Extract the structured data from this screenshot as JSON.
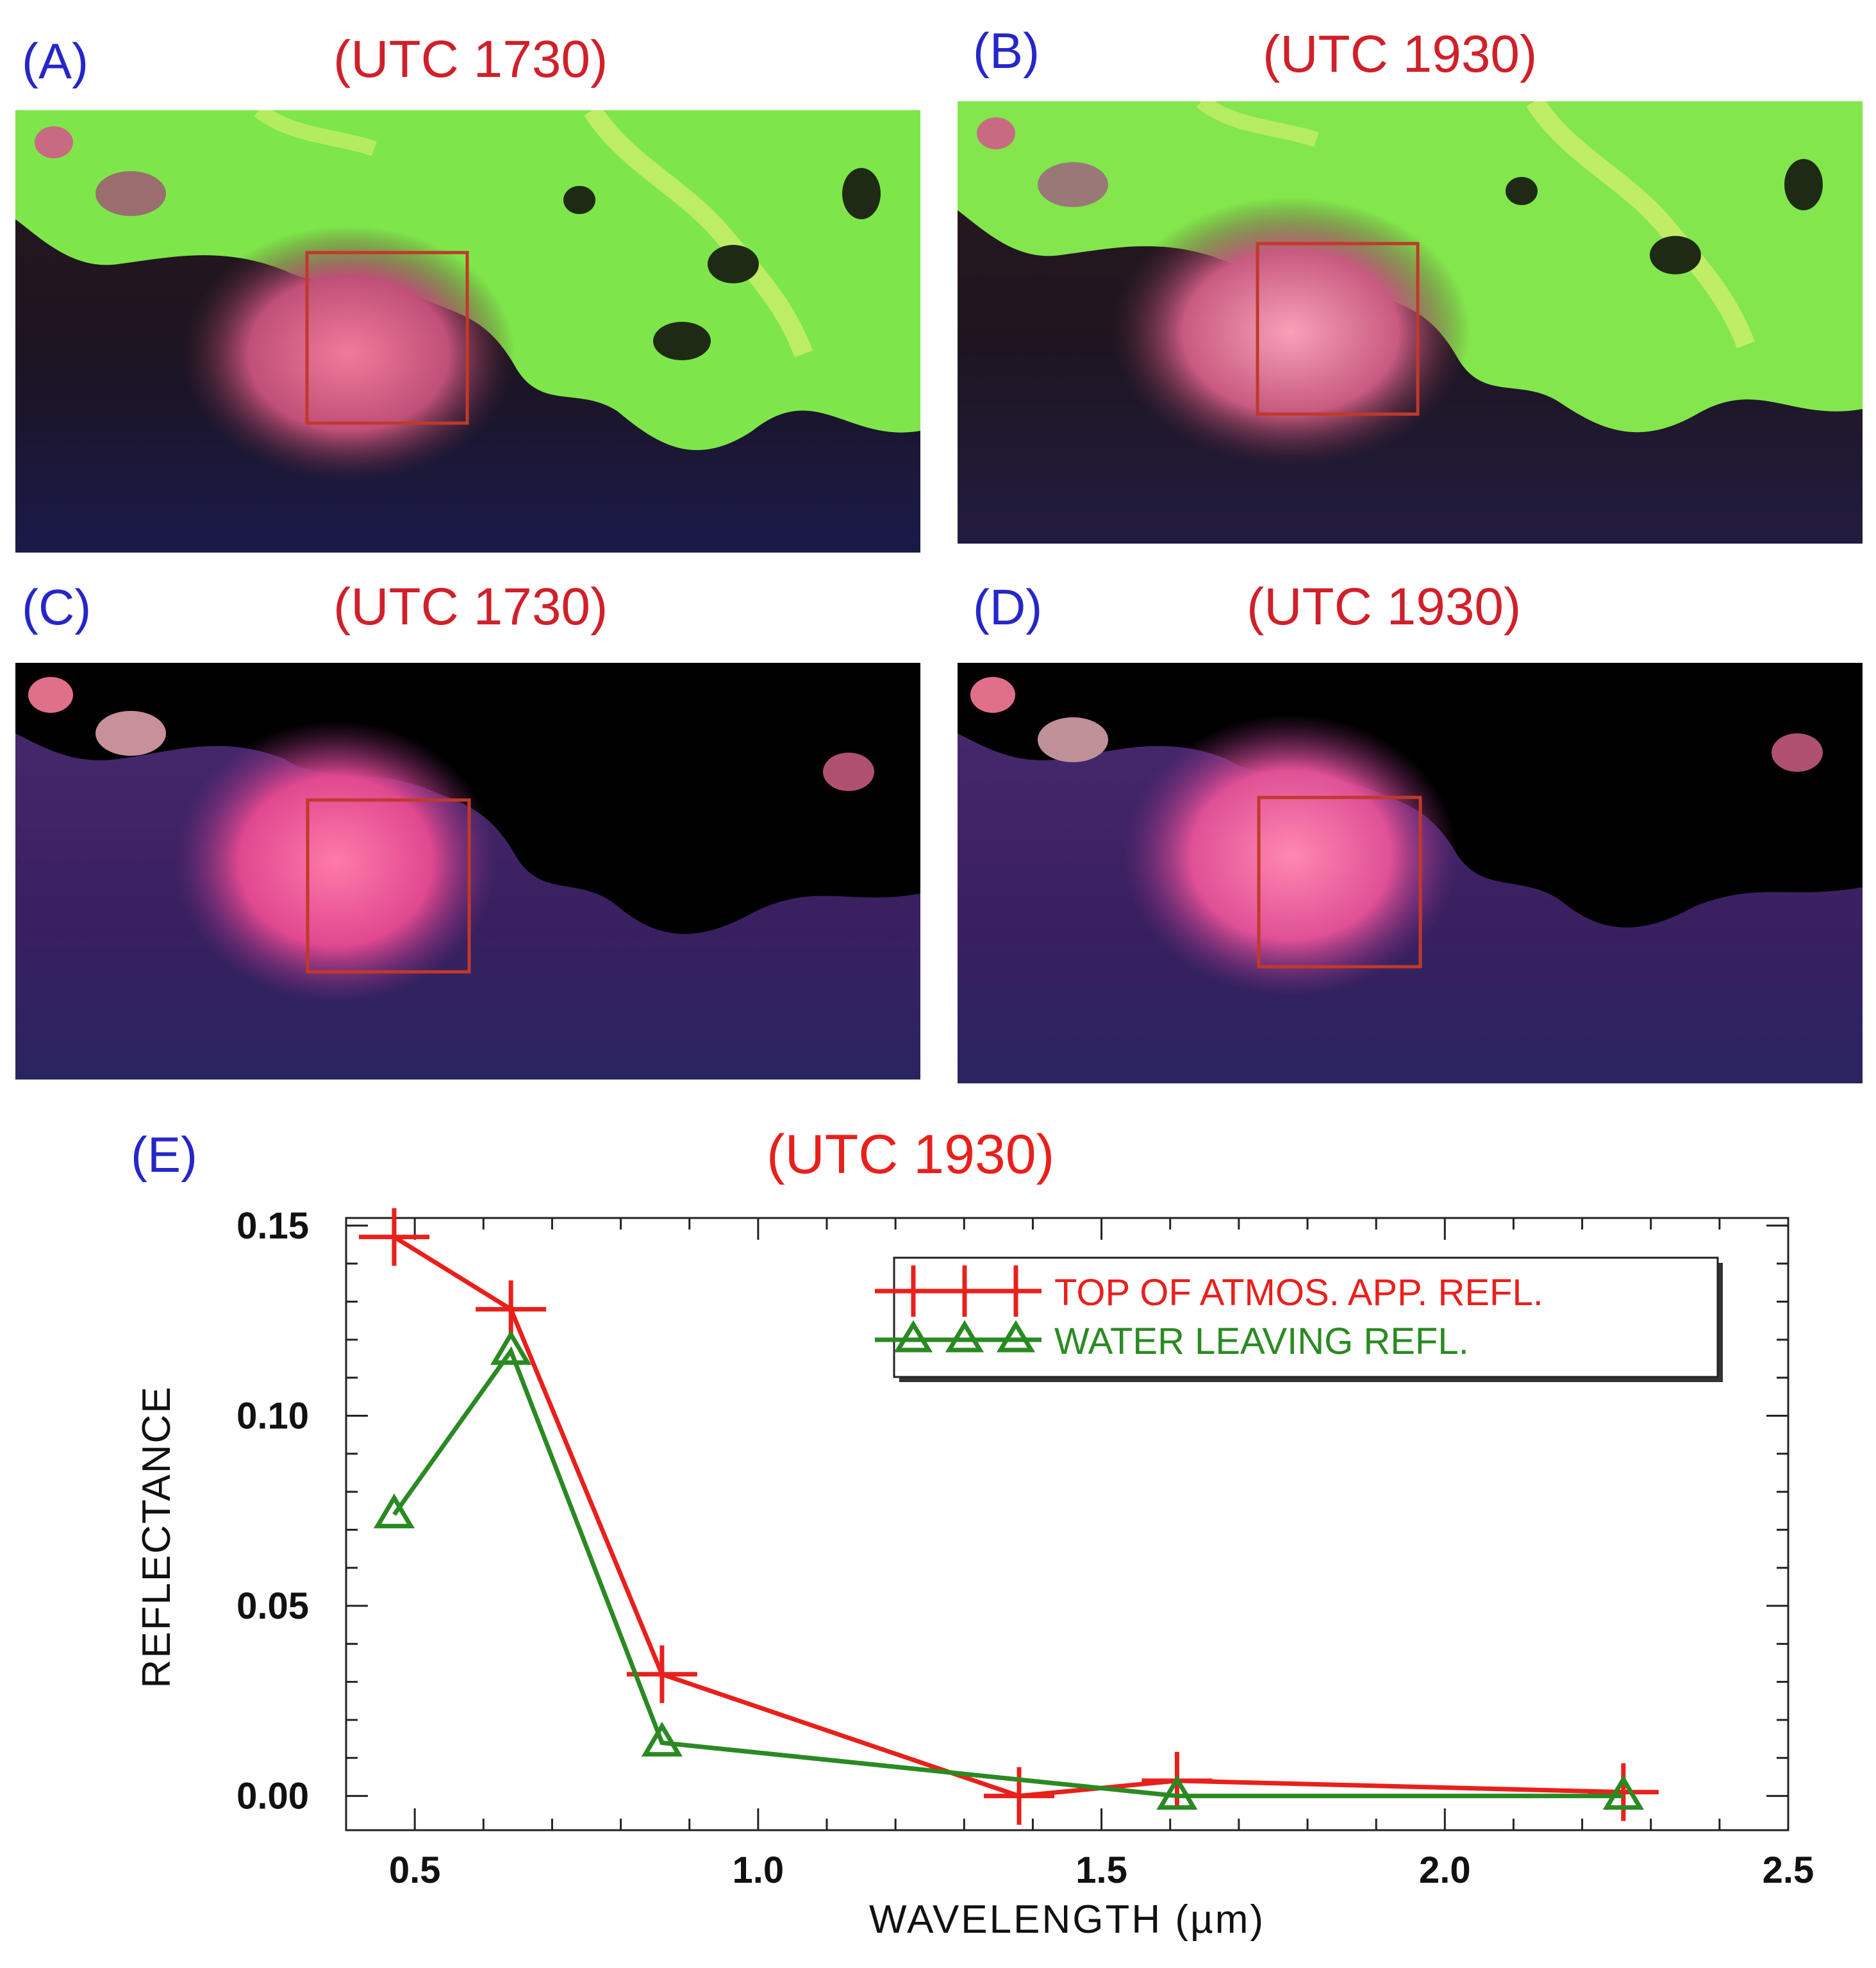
{
  "panels": [
    {
      "letter": "(A)",
      "time": "(UTC 1730)"
    },
    {
      "letter": "(B)",
      "time": "(UTC 1930)"
    },
    {
      "letter": "(C)",
      "time": "(UTC 1730)"
    },
    {
      "letter": "(D)",
      "time": "(UTC 1930)"
    }
  ],
  "chart_panel": {
    "letter": "(E)",
    "time": "(UTC 1930)"
  },
  "colors": {
    "panel_letter": "#2626c9",
    "panel_time": "#d0202a",
    "toa_series": "#e8201c",
    "water_series": "#2a8a22",
    "roi_box": "#c0392b"
  },
  "chart_data": {
    "type": "line",
    "title": "(UTC 1930)",
    "xlabel": "WAVELENGTH (µm)",
    "ylabel": "REFLECTANCE",
    "xlim": [
      0.4,
      2.5
    ],
    "ylim": [
      -0.009,
      0.152
    ],
    "x_ticks": [
      0.5,
      1.0,
      1.5,
      2.0,
      2.5
    ],
    "x_tick_labels": [
      "0.5",
      "1.0",
      "1.5",
      "2.0",
      "2.5"
    ],
    "y_ticks": [
      0.0,
      0.05,
      0.1,
      0.15
    ],
    "y_tick_labels": [
      "0.00",
      "0.05",
      "0.10",
      "0.15"
    ],
    "legend_position": "top-right",
    "series": [
      {
        "name": "TOP OF ATMOS. APP. REFL.",
        "marker": "plus",
        "x": [
          0.47,
          0.64,
          0.86,
          1.38,
          1.61,
          2.26
        ],
        "y": [
          0.147,
          0.128,
          0.032,
          0.0,
          0.004,
          0.001
        ]
      },
      {
        "name": "WATER LEAVING REFL.",
        "marker": "triangle",
        "x": [
          0.47,
          0.64,
          0.86,
          1.61,
          2.26
        ],
        "y": [
          0.074,
          0.117,
          0.014,
          0.0,
          0.0
        ]
      }
    ]
  }
}
